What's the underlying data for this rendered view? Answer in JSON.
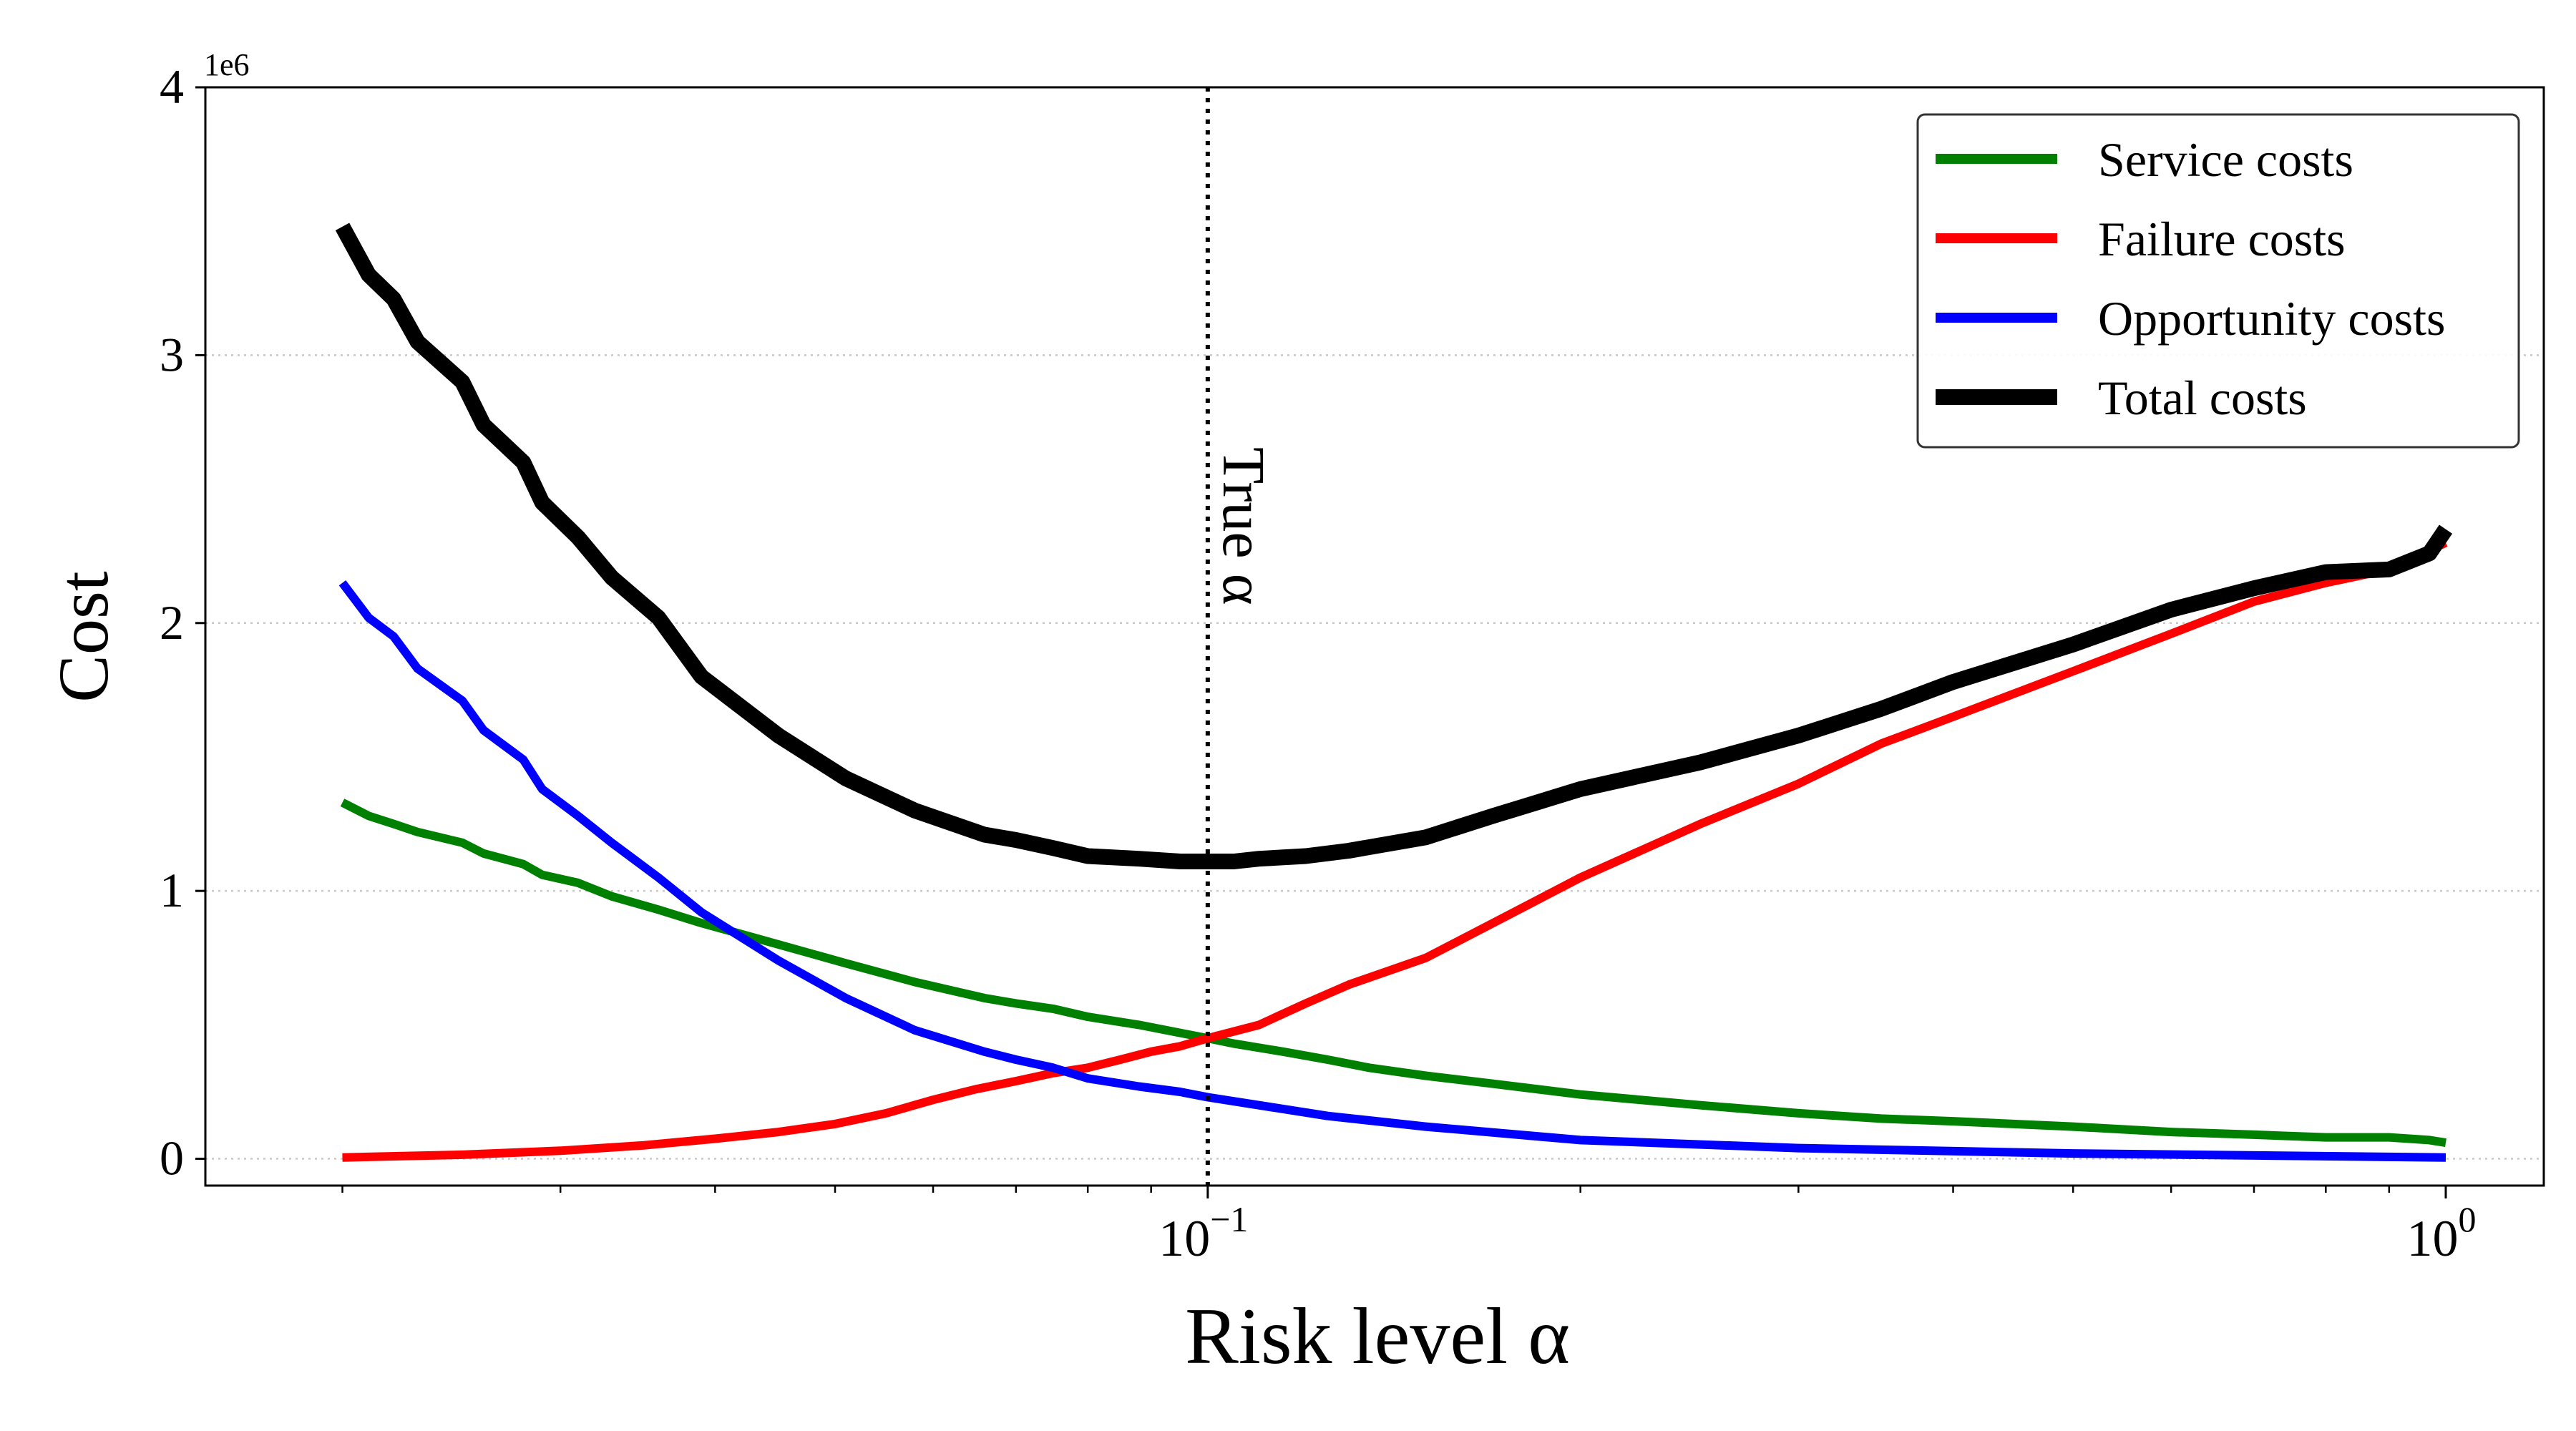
{
  "chart_data": {
    "type": "line",
    "xlabel": "Risk level α",
    "ylabel": "Cost",
    "y_multiplier_label": "1e6",
    "xscale": "log",
    "xlim": [
      0.0155,
      1.2
    ],
    "ylim": [
      -100000,
      4000000
    ],
    "xticks": [
      {
        "value": 0.1,
        "label": "10",
        "exp": "−1"
      },
      {
        "value": 1.0,
        "label": "10",
        "exp": "0"
      }
    ],
    "yticks": [
      {
        "value": 0,
        "label": "0"
      },
      {
        "value": 1000000,
        "label": "1"
      },
      {
        "value": 2000000,
        "label": "2"
      },
      {
        "value": 3000000,
        "label": "3"
      },
      {
        "value": 4000000,
        "label": "4"
      }
    ],
    "grid": "y-dotted",
    "legend_position": "top-right",
    "vline": {
      "x": 0.1,
      "label": "True α"
    },
    "colors": {
      "service": "#008000",
      "failure": "#ff0000",
      "opportunity": "#0000ff",
      "total": "#000000",
      "grid": "#c8c8c8"
    },
    "series": [
      {
        "name": "Service costs",
        "color": "#008000",
        "x": [
          0.02,
          0.021,
          0.022,
          0.023,
          0.025,
          0.026,
          0.028,
          0.029,
          0.031,
          0.033,
          0.036,
          0.039,
          0.045,
          0.051,
          0.058,
          0.066,
          0.07,
          0.075,
          0.08,
          0.088,
          0.095,
          0.1,
          0.105,
          0.115,
          0.125,
          0.135,
          0.15,
          0.17,
          0.2,
          0.25,
          0.3,
          0.35,
          0.4,
          0.5,
          0.6,
          0.7,
          0.8,
          0.9,
          0.97,
          1.0
        ],
        "y": [
          1330000,
          1280000,
          1250000,
          1220000,
          1180000,
          1140000,
          1100000,
          1060000,
          1030000,
          980000,
          930000,
          880000,
          800000,
          730000,
          660000,
          600000,
          580000,
          560000,
          530000,
          500000,
          470000,
          450000,
          430000,
          400000,
          370000,
          340000,
          310000,
          280000,
          240000,
          200000,
          170000,
          150000,
          140000,
          120000,
          100000,
          90000,
          80000,
          80000,
          70000,
          60000
        ]
      },
      {
        "name": "Failure costs",
        "color": "#ff0000",
        "x": [
          0.02,
          0.025,
          0.03,
          0.035,
          0.04,
          0.045,
          0.05,
          0.055,
          0.06,
          0.065,
          0.07,
          0.075,
          0.08,
          0.085,
          0.09,
          0.095,
          0.1,
          0.11,
          0.12,
          0.13,
          0.15,
          0.17,
          0.2,
          0.25,
          0.3,
          0.35,
          0.4,
          0.5,
          0.6,
          0.7,
          0.8,
          0.9,
          1.0
        ],
        "y": [
          5000,
          15000,
          30000,
          50000,
          75000,
          100000,
          130000,
          170000,
          220000,
          260000,
          290000,
          320000,
          340000,
          370000,
          400000,
          420000,
          450000,
          500000,
          580000,
          650000,
          750000,
          880000,
          1050000,
          1250000,
          1400000,
          1550000,
          1650000,
          1820000,
          1960000,
          2080000,
          2150000,
          2200000,
          2300000
        ]
      },
      {
        "name": "Opportunity costs",
        "color": "#0000ff",
        "x": [
          0.02,
          0.021,
          0.022,
          0.023,
          0.025,
          0.026,
          0.028,
          0.029,
          0.031,
          0.033,
          0.036,
          0.039,
          0.045,
          0.051,
          0.058,
          0.066,
          0.07,
          0.075,
          0.08,
          0.088,
          0.095,
          0.1,
          0.11,
          0.125,
          0.15,
          0.2,
          0.3,
          0.5,
          1.0
        ],
        "y": [
          2150000,
          2020000,
          1950000,
          1830000,
          1710000,
          1600000,
          1490000,
          1380000,
          1280000,
          1180000,
          1050000,
          920000,
          740000,
          600000,
          480000,
          400000,
          370000,
          340000,
          300000,
          270000,
          250000,
          230000,
          200000,
          160000,
          120000,
          70000,
          40000,
          20000,
          5000
        ]
      },
      {
        "name": "Total costs",
        "color": "#000000",
        "x": [
          0.02,
          0.021,
          0.022,
          0.023,
          0.025,
          0.026,
          0.028,
          0.029,
          0.031,
          0.033,
          0.036,
          0.039,
          0.045,
          0.051,
          0.058,
          0.066,
          0.07,
          0.075,
          0.08,
          0.088,
          0.095,
          0.1,
          0.105,
          0.11,
          0.12,
          0.13,
          0.15,
          0.17,
          0.2,
          0.25,
          0.3,
          0.35,
          0.4,
          0.5,
          0.6,
          0.7,
          0.8,
          0.9,
          0.97,
          1.0
        ],
        "y": [
          3480000,
          3300000,
          3210000,
          3050000,
          2900000,
          2740000,
          2600000,
          2450000,
          2320000,
          2170000,
          2020000,
          1800000,
          1580000,
          1420000,
          1300000,
          1210000,
          1190000,
          1160000,
          1130000,
          1120000,
          1110000,
          1110000,
          1110000,
          1120000,
          1130000,
          1150000,
          1200000,
          1280000,
          1380000,
          1480000,
          1580000,
          1680000,
          1780000,
          1920000,
          2050000,
          2130000,
          2190000,
          2200000,
          2260000,
          2350000
        ]
      }
    ]
  }
}
